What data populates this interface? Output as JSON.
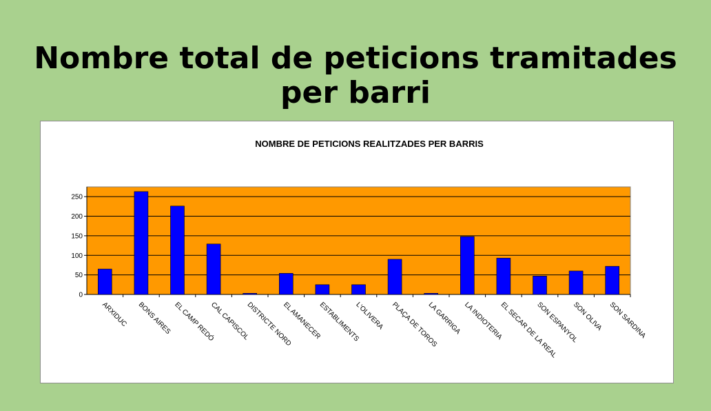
{
  "slide": {
    "title_line1": "Nombre total de peticions tramitades",
    "title_line2": "per barri"
  },
  "colors": {
    "background": "#a9d18e",
    "plot_area": "#ff9900",
    "bar": "#0000ff"
  },
  "chart_data": {
    "type": "bar",
    "title": "NOMBRE DE PETICIONS REALITZADES PER BARRIS",
    "xlabel": "",
    "ylabel": "",
    "categories": [
      "ARXIDUC",
      "BONS AIRES",
      "EL CAMP REDÓ",
      "CAL CAPISCOL",
      "DISTRICTE NORD",
      "EL AMANECER",
      "ESTABLIMENTS",
      "L'OLIVERA",
      "PLAÇA DE TOROS",
      "LA GARRIGA",
      "LA INDIOTERIA",
      "EL SECAR DE LA REAL",
      "SON ESPANYOL",
      "SON OLIVA",
      "SON SARDINA"
    ],
    "values": [
      65,
      263,
      226,
      129,
      3,
      54,
      25,
      25,
      90,
      3,
      148,
      93,
      47,
      60,
      72
    ],
    "ylim": [
      0,
      275
    ],
    "yticks": [
      0,
      50,
      100,
      150,
      200,
      250
    ],
    "grid": true,
    "legend": "none"
  }
}
